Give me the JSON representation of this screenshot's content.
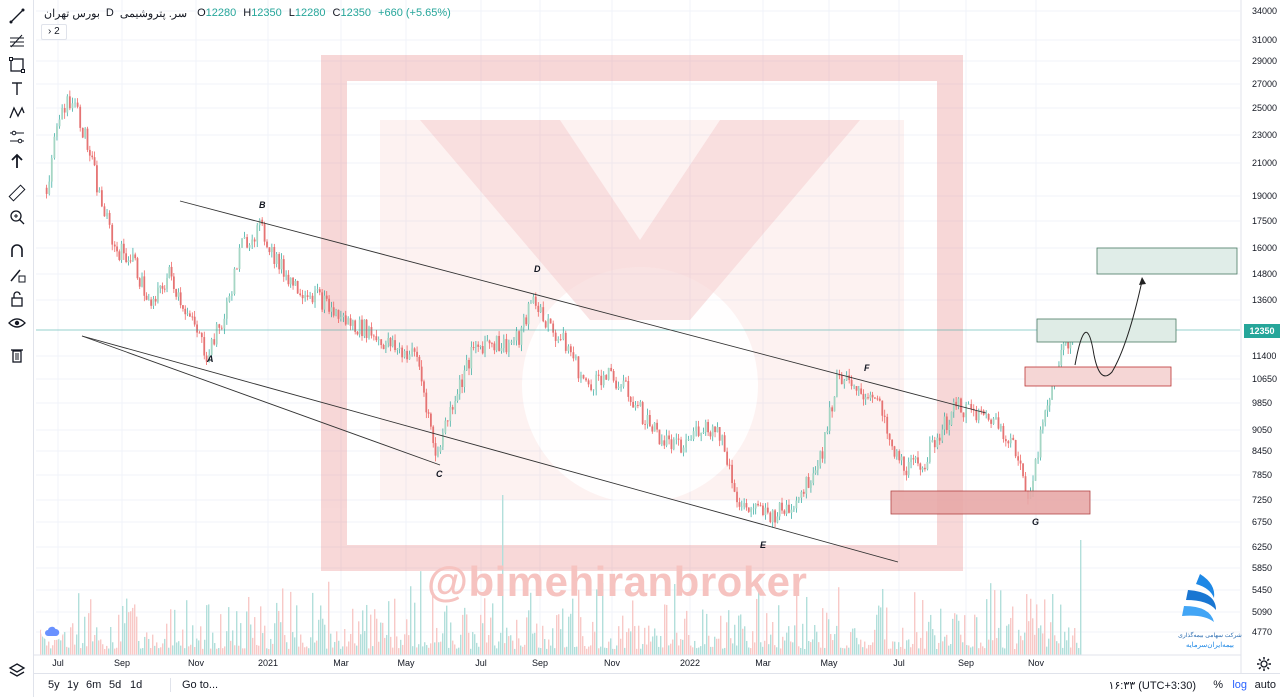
{
  "legend": {
    "exchange": "بورس تهران",
    "interval": "D",
    "symbol": "سر. پتروشیمی",
    "o_label": "O",
    "o_value": "12280",
    "h_label": "H",
    "h_value": "12350",
    "l_label": "L",
    "l_value": "12280",
    "c_label": "C",
    "c_value": "12350",
    "change": "+660 (+5.65%)",
    "indicators_badge": "2"
  },
  "toolbar": {
    "icons": [
      "trend-line-icon",
      "fib-icon",
      "rectangle-icon",
      "text-icon",
      "pattern-icon",
      "forecast-icon",
      "arrow-icon",
      "ruler-icon",
      "zoom-in-icon",
      "magnet-icon",
      "lock-drawing-icon",
      "unlock-icon",
      "eye-icon",
      "trash-icon",
      "layers-icon"
    ]
  },
  "bottom_bar": {
    "timeframes": [
      "5y",
      "1y",
      "6m",
      "5d",
      "1d"
    ],
    "goto": "Go to...",
    "clock": "۱۶:۳۳ (UTC+3:30)",
    "percent": "%",
    "log": "log",
    "auto": "auto"
  },
  "watermark": "@bimehiranbroker",
  "brand": {
    "line1": "شرکت سهامی بیمه‌گذاری",
    "line2": "بیمه‌ایران‌سرمایه"
  },
  "colors": {
    "up": "#a5d6c4",
    "down": "#e57373",
    "up_solid": "#26a69a",
    "down_solid": "#ef5350",
    "price_line": "#26a69a",
    "grid": "#f0f3fa",
    "watermark": "#f6c3c0"
  },
  "chart_data": {
    "type": "candlestick",
    "y_axis_ticks": [
      "34000",
      "31000",
      "29000",
      "27000",
      "25000",
      "23000",
      "21000",
      "19000",
      "17500",
      "16000",
      "14800",
      "13600",
      "12350",
      "11400",
      "10650",
      "9850",
      "9050",
      "8450",
      "7850",
      "7250",
      "6750",
      "6250",
      "5850",
      "5450",
      "5090",
      "4770"
    ],
    "x_axis_ticks": [
      "Jul",
      "Sep",
      "Nov",
      "2021",
      "Mar",
      "May",
      "Jul",
      "Sep",
      "Nov",
      "2022",
      "Mar",
      "May",
      "Jul",
      "Sep",
      "Nov"
    ],
    "last_price": "12350",
    "wave_labels": [
      "A",
      "B",
      "C",
      "D",
      "E",
      "F",
      "G"
    ],
    "price_path": [
      [
        "2020-06-20",
        19500
      ],
      [
        "2020-07-05",
        25000
      ],
      [
        "2020-07-15",
        26000
      ],
      [
        "2020-07-25",
        23500
      ],
      [
        "2020-08-10",
        19000
      ],
      [
        "2020-08-25",
        16000
      ],
      [
        "2020-09-10",
        15500
      ],
      [
        "2020-09-25",
        13200
      ],
      [
        "2020-10-10",
        14800
      ],
      [
        "2020-10-25",
        13000
      ],
      [
        "2020-11-10",
        11500
      ],
      [
        "2020-11-25",
        12800
      ],
      [
        "2020-12-10",
        16200
      ],
      [
        "2020-12-25",
        17100
      ],
      [
        "2021-01-10",
        15200
      ],
      [
        "2021-01-25",
        14200
      ],
      [
        "2021-02-10",
        13800
      ],
      [
        "2021-02-25",
        13000
      ],
      [
        "2021-03-10",
        12600
      ],
      [
        "2021-03-25",
        12400
      ],
      [
        "2021-04-10",
        11900
      ],
      [
        "2021-04-25",
        11600
      ],
      [
        "2021-05-10",
        11400
      ],
      [
        "2021-05-25",
        8300
      ],
      [
        "2021-06-10",
        10100
      ],
      [
        "2021-06-25",
        11600
      ],
      [
        "2021-07-10",
        12000
      ],
      [
        "2021-07-25",
        11800
      ],
      [
        "2021-08-10",
        12000
      ],
      [
        "2021-08-25",
        13700
      ],
      [
        "2021-09-10",
        12400
      ],
      [
        "2021-09-25",
        11700
      ],
      [
        "2021-10-10",
        10400
      ],
      [
        "2021-10-25",
        10800
      ],
      [
        "2021-11-10",
        10400
      ],
      [
        "2021-11-25",
        9500
      ],
      [
        "2021-12-10",
        8800
      ],
      [
        "2021-12-25",
        8500
      ],
      [
        "2022-01-10",
        9200
      ],
      [
        "2022-01-25",
        9000
      ],
      [
        "2022-02-10",
        7100
      ],
      [
        "2022-02-25",
        7000
      ],
      [
        "2022-03-10",
        6900
      ],
      [
        "2022-03-25",
        7100
      ],
      [
        "2022-04-10",
        7600
      ],
      [
        "2022-04-25",
        8500
      ],
      [
        "2022-05-10",
        10900
      ],
      [
        "2022-05-25",
        10100
      ],
      [
        "2022-06-10",
        10200
      ],
      [
        "2022-06-25",
        8400
      ],
      [
        "2022-07-10",
        8000
      ],
      [
        "2022-07-25",
        8200
      ],
      [
        "2022-08-10",
        9100
      ],
      [
        "2022-08-25",
        9800
      ],
      [
        "2022-09-10",
        9500
      ],
      [
        "2022-09-25",
        9400
      ],
      [
        "2022-10-10",
        8800
      ],
      [
        "2022-10-25",
        7350
      ],
      [
        "2022-11-05",
        8800
      ],
      [
        "2022-11-15",
        10500
      ],
      [
        "2022-11-25",
        11700
      ],
      [
        "2022-12-05",
        12350
      ]
    ]
  }
}
